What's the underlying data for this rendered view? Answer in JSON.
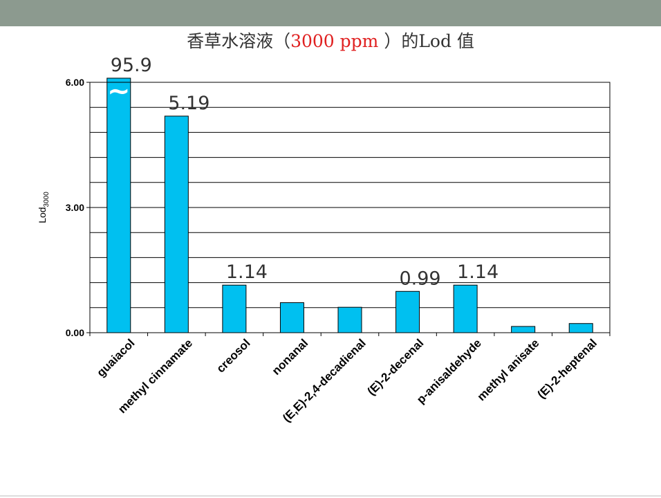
{
  "slide": {
    "title_prefix": "香草水溶液（",
    "title_highlight": "3000 ppm",
    "title_suffix": " ）的Lod 值",
    "highlight_color": "#e02020",
    "band_color": "#8c9a8f"
  },
  "chart_data": {
    "type": "bar",
    "ylabel_main": "Lod",
    "ylabel_sub": "3000",
    "ylim": [
      0,
      6
    ],
    "yticks": [
      0,
      3,
      6
    ],
    "ytick_labels": [
      "0.00",
      "3.00",
      "6.00"
    ],
    "grid": true,
    "bar_color": "#00c0f0",
    "break_symbol": "~",
    "categories": [
      "guaiacol",
      "methyl cinnamate",
      "creosol",
      "nonanal",
      "(E,E)-2,4-decadienal",
      "(E)-2-decenal",
      "p-anisaldehyde",
      "methyl anisate",
      "(E)-2-heptenal"
    ],
    "values": [
      95.9,
      5.19,
      1.14,
      0.72,
      0.61,
      0.99,
      1.14,
      0.15,
      0.22
    ],
    "data_labels": [
      "95.9",
      "5.19",
      "1.14",
      "",
      "",
      "0.99",
      "1.14",
      "",
      ""
    ]
  }
}
